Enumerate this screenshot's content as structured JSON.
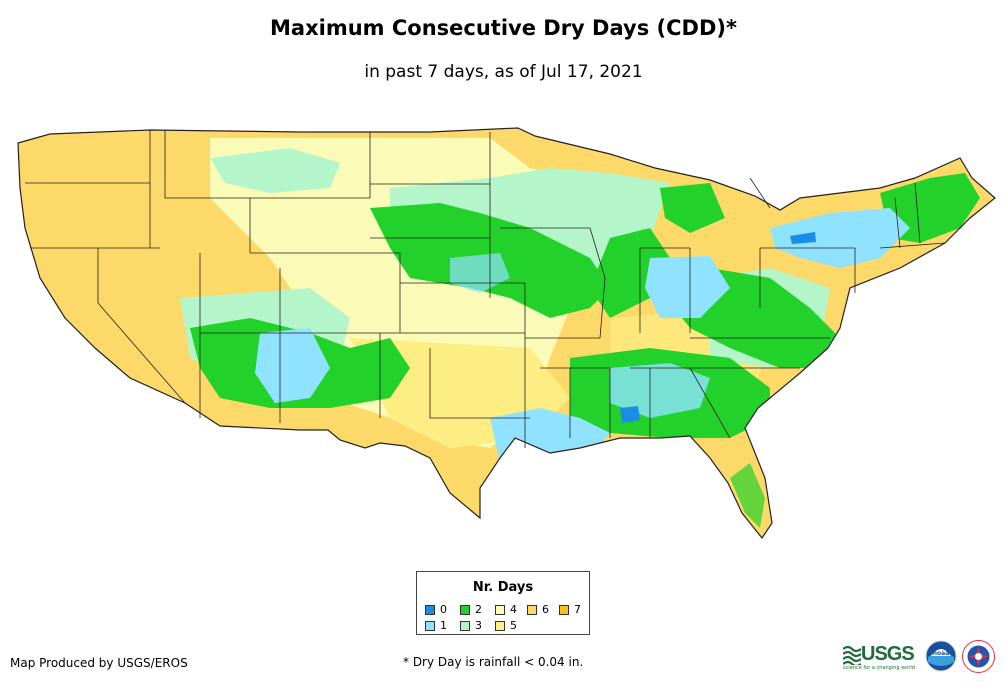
{
  "title": "Maximum Consecutive Dry Days (CDD)*",
  "subtitle": "in past 7 days, as of Jul 17, 2021",
  "legend": {
    "title": "Nr. Days",
    "items": [
      {
        "label": "0",
        "color": "#1a8ee6"
      },
      {
        "label": "1",
        "color": "#8fe3ff"
      },
      {
        "label": "2",
        "color": "#22d12a"
      },
      {
        "label": "3",
        "color": "#b4f5c9"
      },
      {
        "label": "4",
        "color": "#fbfbb8"
      },
      {
        "label": "5",
        "color": "#fdee84"
      },
      {
        "label": "6",
        "color": "#fdd96a"
      },
      {
        "label": "7",
        "color": "#fbc21b"
      }
    ]
  },
  "credit": "Map Produced by USGS/EROS",
  "footnote": "* Dry Day is rainfall < 0.04 in.",
  "logos": {
    "usgs": "USGS",
    "usgs_tagline": "science for a changing world",
    "noaa": "noaa"
  }
}
